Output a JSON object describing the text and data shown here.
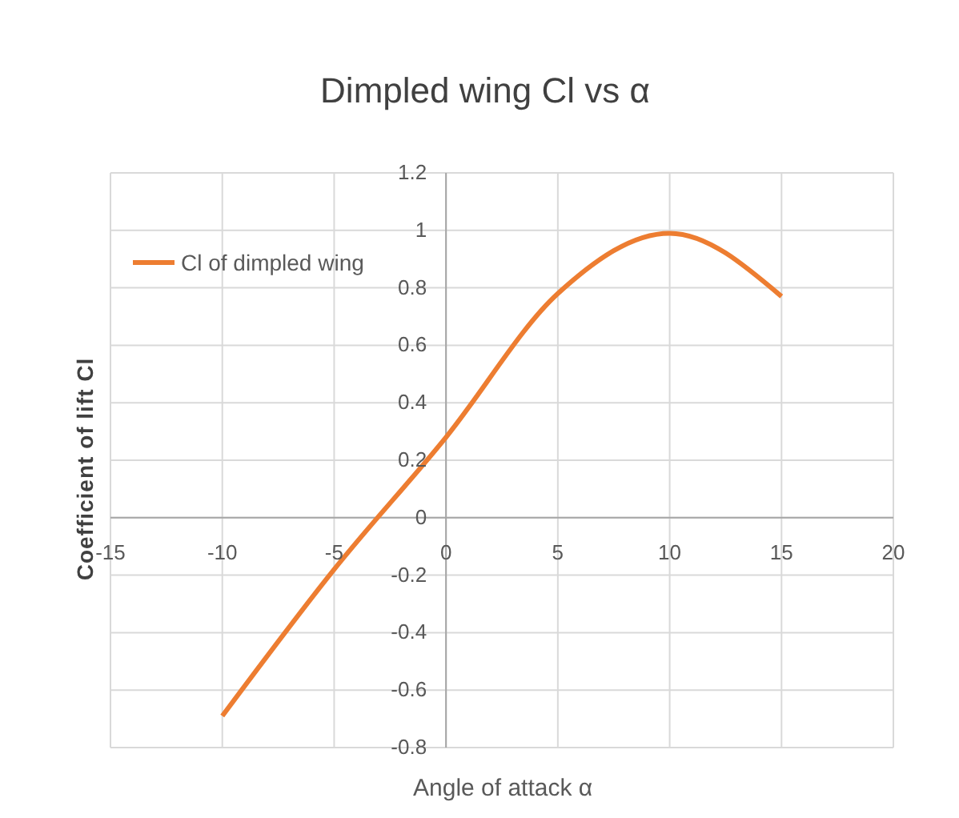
{
  "chart_data": {
    "type": "line",
    "title": "Dimpled wing Cl vs α",
    "xlabel": "Angle of attack α",
    "ylabel": "Coefficient of lift Cl",
    "x": [
      -10,
      -5,
      0,
      5,
      10,
      15
    ],
    "series": [
      {
        "name": "Cl of dimpled wing",
        "color": "#ed7d31",
        "values": [
          -0.69,
          -0.18,
          0.28,
          0.78,
          0.99,
          0.77
        ]
      }
    ],
    "xlim": [
      -15,
      20
    ],
    "xticks": [
      -15,
      -10,
      -5,
      0,
      5,
      10,
      15,
      20
    ],
    "ylim": [
      -0.8,
      1.2
    ],
    "yticks": [
      -0.8,
      -0.6,
      -0.4,
      -0.2,
      0,
      0.2,
      0.4,
      0.6,
      0.8,
      1,
      1.2
    ],
    "grid": true,
    "legend": "top left",
    "marker": "none",
    "line_style": "solid"
  }
}
